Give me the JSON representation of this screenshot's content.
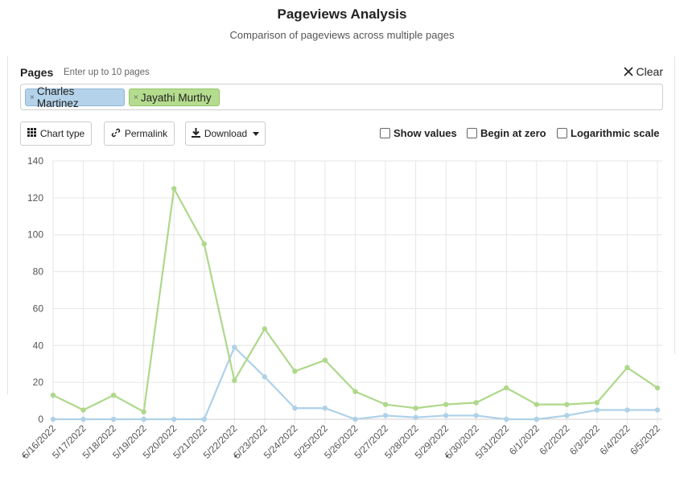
{
  "header": {
    "title": "Pageviews Analysis",
    "subtitle": "Comparison of pageviews across multiple pages"
  },
  "pages": {
    "label": "Pages",
    "hint": "Enter up to 10 pages",
    "clear_label": "Clear",
    "tags": [
      {
        "label": "Charles Martinez",
        "remove_glyph": "×"
      },
      {
        "label": "Jayathi Murthy",
        "remove_glyph": "×"
      }
    ]
  },
  "toolbar": {
    "chart_type_label": "Chart type",
    "permalink_label": "Permalink",
    "download_label": "Download"
  },
  "options": {
    "show_values": "Show values",
    "begin_at_zero": "Begin at zero",
    "log_scale": "Logarithmic scale"
  },
  "colors": {
    "charles": "#aed1e8",
    "jayathi": "#aed88a"
  },
  "chart_data": {
    "type": "line",
    "x": [
      "5/16/2022",
      "5/17/2022",
      "5/18/2022",
      "5/19/2022",
      "5/20/2022",
      "5/21/2022",
      "5/22/2022",
      "5/23/2022",
      "5/24/2022",
      "5/25/2022",
      "5/26/2022",
      "5/27/2022",
      "5/28/2022",
      "5/29/2022",
      "5/30/2022",
      "5/31/2022",
      "6/1/2022",
      "6/2/2022",
      "6/3/2022",
      "6/4/2022",
      "6/5/2022"
    ],
    "weekend_marked": [
      "5/16/2022",
      "5/23/2022",
      "5/30/2022"
    ],
    "series": [
      {
        "name": "Charles Martinez",
        "color": "#aed1e8",
        "values": [
          0,
          0,
          0,
          0,
          0,
          0,
          39,
          23,
          6,
          6,
          0,
          2,
          1,
          2,
          2,
          0,
          0,
          2,
          5,
          5,
          5
        ]
      },
      {
        "name": "Jayathi Murthy",
        "color": "#aed88a",
        "values": [
          13,
          5,
          13,
          4,
          125,
          95,
          21,
          49,
          26,
          32,
          15,
          8,
          6,
          8,
          9,
          17,
          8,
          8,
          9,
          28,
          17
        ]
      }
    ],
    "yticks": [
      0,
      20,
      40,
      60,
      80,
      100,
      120,
      140
    ],
    "ylim": [
      0,
      140
    ],
    "grid": true,
    "legend": "none"
  }
}
